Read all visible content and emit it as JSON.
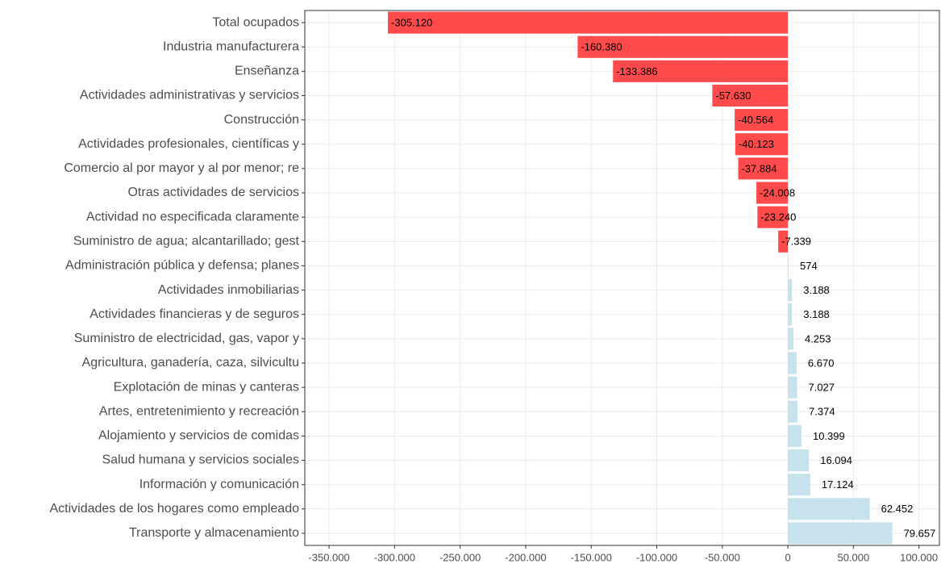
{
  "chart_data": {
    "type": "hbar",
    "categories": [
      "Total ocupados",
      "Industria manufacturera",
      "Enseñanza",
      "Actividades administrativas y servicios ",
      "Construcción",
      "Actividades profesionales, científicas y",
      "Comercio al por mayor y al por menor; re",
      "Otras actividades de servicios",
      "Actividad no especificada claramente",
      "Suministro de agua; alcantarillado; gest",
      "Administración pública y defensa; planes",
      "Actividades inmobiliarias",
      "Actividades financieras y de seguros",
      "Suministro de electricidad, gas, vapor y",
      "Agricultura, ganadería, caza, silvicultu",
      "Explotación de minas y canteras",
      "Artes, entretenimiento y recreación",
      "Alojamiento y servicios de comidas",
      "Salud humana y servicios sociales",
      "Información y comunicación",
      "Actividades de los hogares como empleado",
      "Transporte y almacenamiento"
    ],
    "values": [
      -305120,
      -160380,
      -133386,
      -57630,
      -40564,
      -40123,
      -37884,
      -24008,
      -23240,
      -7339,
      574,
      3188,
      3188,
      4253,
      6670,
      7027,
      7374,
      10399,
      16094,
      17124,
      62452,
      79657
    ],
    "value_labels": [
      "-305.120",
      "-160.380",
      "-133.386",
      "-57.630",
      "-40.564",
      "-40.123",
      "-37.884",
      "-24.008",
      "-23.240",
      "-7.339",
      "574",
      "3.188",
      "3.188",
      "4.253",
      "6.670",
      "7.027",
      "7.374",
      "10.399",
      "16.094",
      "17.124",
      "62.452",
      "79.657"
    ],
    "negative_color": "#ff4b4b",
    "positive_color": "#c6e3ed",
    "xlim": [
      -368500,
      115600
    ],
    "xticks": [
      {
        "value": -350000,
        "label": "-350.000"
      },
      {
        "value": -300000,
        "label": "-300.000"
      },
      {
        "value": -250000,
        "label": "-250.000"
      },
      {
        "value": -200000,
        "label": "-200.000"
      },
      {
        "value": -150000,
        "label": "-150.000"
      },
      {
        "value": -100000,
        "label": "-100.000"
      },
      {
        "value": -50000,
        "label": "-50.000"
      },
      0,
      {
        "value": 50000,
        "label": "50.000"
      },
      {
        "value": 100000,
        "label": "100.000"
      }
    ],
    "grid": true
  }
}
